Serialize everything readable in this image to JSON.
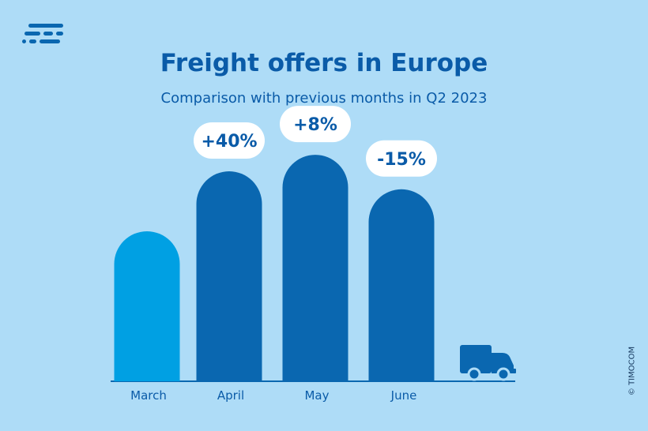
{
  "title": "Freight offers in Europe",
  "subtitle": "Comparison with previous months in Q2 2023",
  "copyright": "© TIMOCOM",
  "colors": {
    "background": "#aedcf7",
    "highlight_bar": "#00a0e3",
    "bar": "#0a67b0",
    "label_pill": "#ffffff",
    "text": "#0a5ba8"
  },
  "icons": [
    "timocom-logo-icon",
    "truck-icon"
  ],
  "chart_data": {
    "type": "bar",
    "title": "Freight offers in Europe",
    "subtitle": "Comparison with previous months in Q2 2023",
    "categories": [
      "March",
      "April",
      "May",
      "June"
    ],
    "values": [
      100,
      140,
      151,
      128
    ],
    "change_labels": [
      "",
      "+40%",
      "+8%",
      "-15%"
    ],
    "ylim": [
      0,
      160
    ],
    "grid": false,
    "legend": "none"
  }
}
